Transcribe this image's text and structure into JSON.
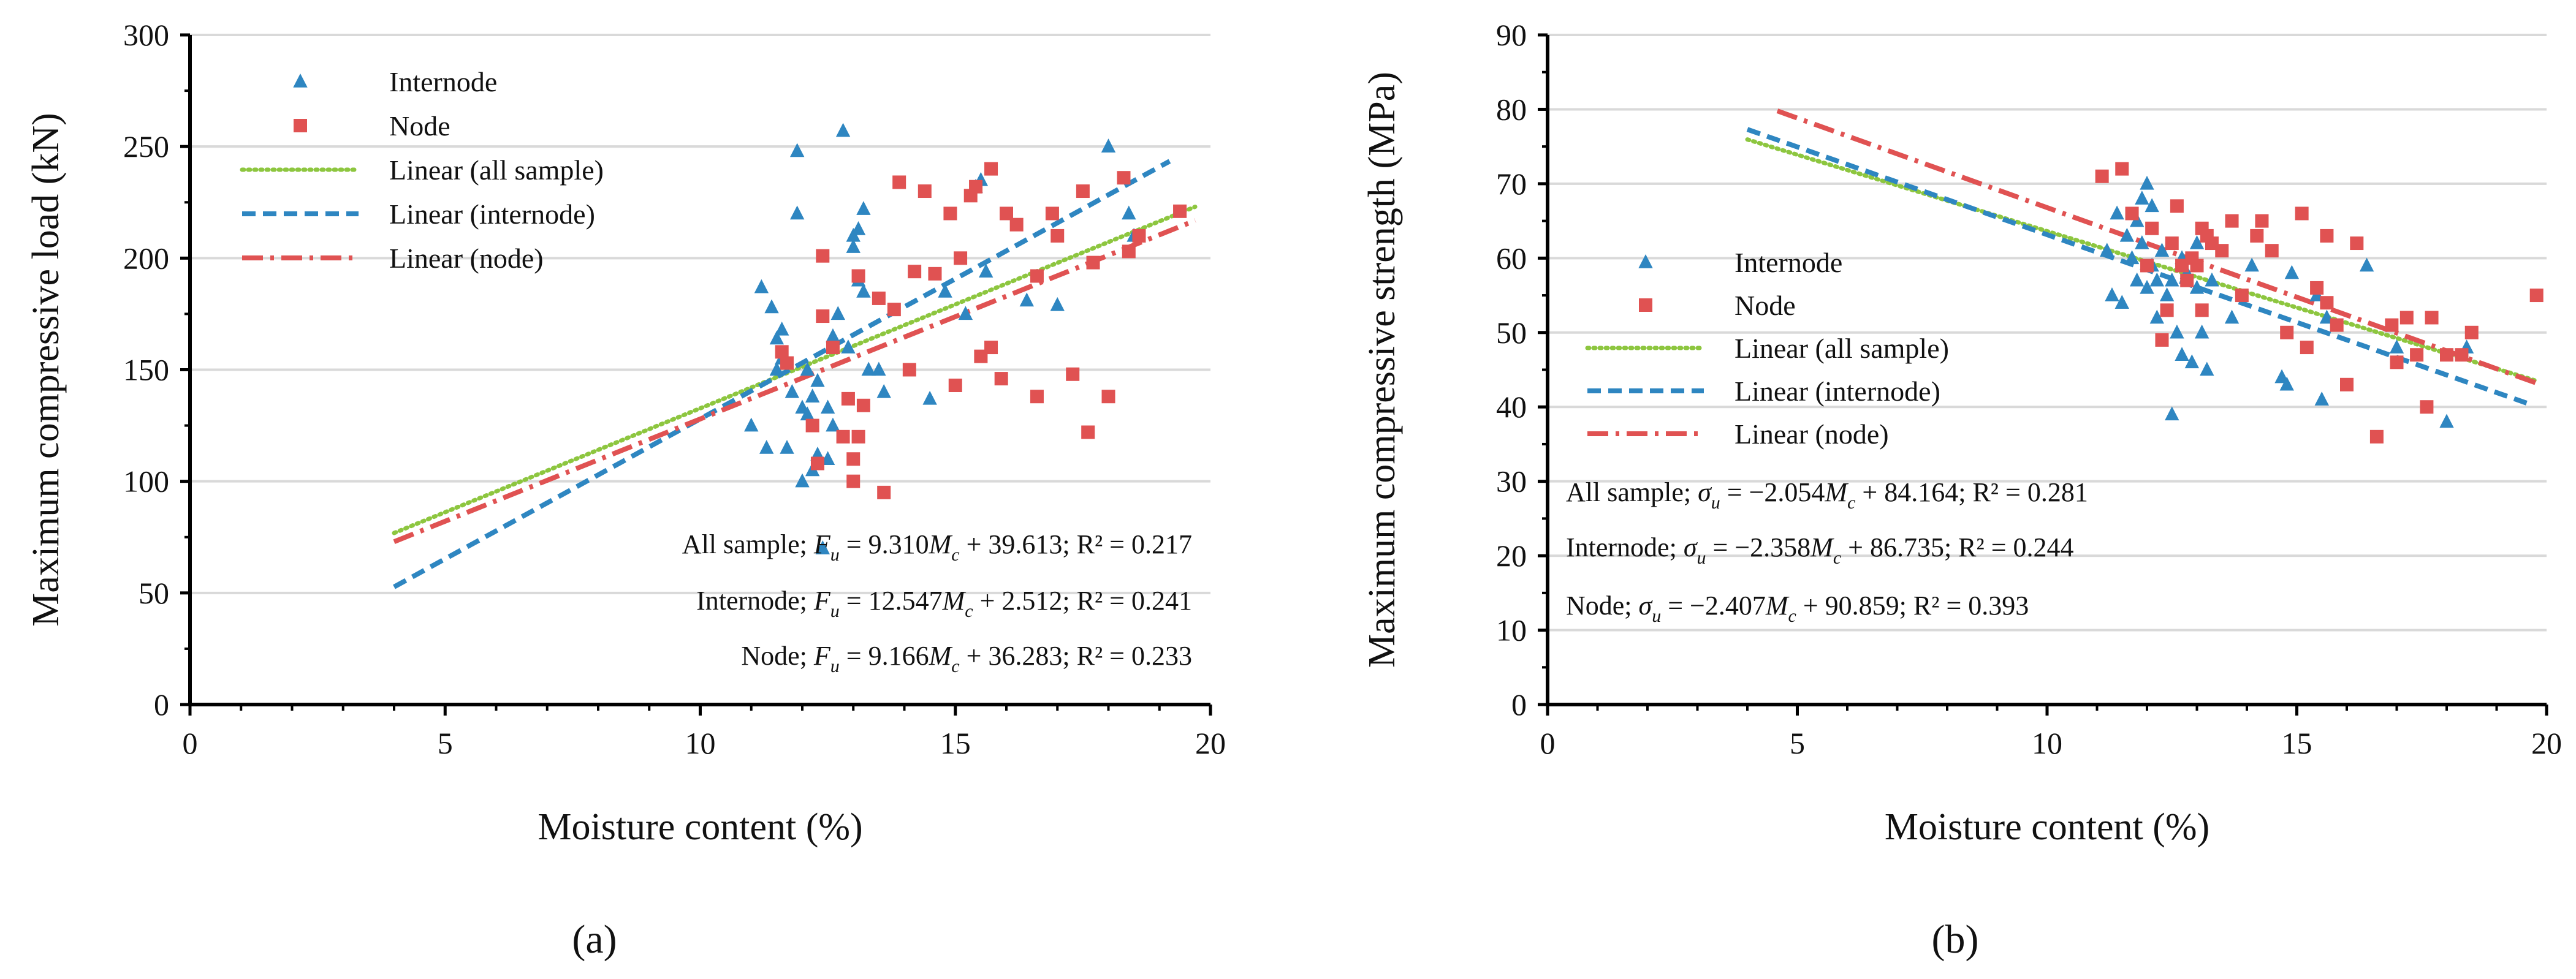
{
  "colors": {
    "internode": "#2E86C1",
    "node": "#E05252",
    "all": "#8DC63F",
    "grid": "#D9D9D9",
    "axis": "#000000"
  },
  "panels": [
    {
      "label": "(a)",
      "equations": [
        {
          "pre": "All sample; ",
          "var": "F",
          "vsub": "u",
          "mid": " = 9.310",
          "x": "M",
          "xsub": "c",
          "post": " + 39.613; R² = 0.217"
        },
        {
          "pre": "Internode; ",
          "var": "F",
          "vsub": "u",
          "mid": " = 12.547",
          "x": "M",
          "xsub": "c",
          "post": " + 2.512; R² = 0.241"
        },
        {
          "pre": "Node; ",
          "var": "F",
          "vsub": "u",
          "mid": " = 9.166",
          "x": "M",
          "xsub": "c",
          "post": " + 36.283; R² = 0.233"
        }
      ]
    },
    {
      "label": "(b)",
      "equations": [
        {
          "pre": "All sample; ",
          "var": "σ",
          "vsub": "u",
          "mid": " = −2.054",
          "x": "M",
          "xsub": "c",
          "post": " + 84.164; R² = 0.281"
        },
        {
          "pre": "Internode; ",
          "var": "σ",
          "vsub": "u",
          "mid": " = −2.358",
          "x": "M",
          "xsub": "c",
          "post": " + 86.735; R² = 0.244"
        },
        {
          "pre": "Node; ",
          "var": "σ",
          "vsub": "u",
          "mid": " = −2.407",
          "x": "M",
          "xsub": "c",
          "post": " + 90.859; R² = 0.393"
        }
      ]
    }
  ],
  "chart_data": [
    {
      "type": "scatter",
      "xlabel": "Moisture content (%)",
      "ylabel": "Maximum compressive load (kN)",
      "xlim": [
        0,
        20
      ],
      "ylim": [
        0,
        300
      ],
      "xticks": [
        0,
        5,
        10,
        15,
        20
      ],
      "yticks": [
        0,
        50,
        100,
        150,
        200,
        250,
        300
      ],
      "grid": "horizontal",
      "legend_position": "top-left",
      "legend": [
        "Internode",
        "Node",
        "Linear (all sample)",
        "Linear (internode)",
        "Linear (node)"
      ],
      "series": [
        {
          "name": "Internode",
          "marker": "triangle",
          "color": "#2E86C1",
          "points": [
            [
              11.0,
              125
            ],
            [
              11.2,
              187
            ],
            [
              11.3,
              115
            ],
            [
              11.4,
              178
            ],
            [
              11.5,
              164
            ],
            [
              11.5,
              150
            ],
            [
              11.6,
              168
            ],
            [
              11.6,
              155
            ],
            [
              11.7,
              115
            ],
            [
              11.8,
              140
            ],
            [
              11.9,
              248
            ],
            [
              11.9,
              220
            ],
            [
              12.0,
              133
            ],
            [
              12.0,
              100
            ],
            [
              12.1,
              150
            ],
            [
              12.1,
              130
            ],
            [
              12.2,
              105
            ],
            [
              12.2,
              138
            ],
            [
              12.3,
              112
            ],
            [
              12.3,
              145
            ],
            [
              12.4,
              70
            ],
            [
              12.5,
              133
            ],
            [
              12.5,
              110
            ],
            [
              12.6,
              165
            ],
            [
              12.6,
              125
            ],
            [
              12.7,
              175
            ],
            [
              12.8,
              257
            ],
            [
              12.9,
              160
            ],
            [
              13.0,
              205
            ],
            [
              13.0,
              210
            ],
            [
              13.1,
              213
            ],
            [
              13.1,
              190
            ],
            [
              13.2,
              222
            ],
            [
              13.2,
              185
            ],
            [
              13.3,
              150
            ],
            [
              13.5,
              150
            ],
            [
              13.6,
              140
            ],
            [
              14.5,
              137
            ],
            [
              14.8,
              185
            ],
            [
              15.2,
              175
            ],
            [
              15.4,
              232
            ],
            [
              15.5,
              235
            ],
            [
              15.6,
              194
            ],
            [
              16.4,
              181
            ],
            [
              17.0,
              179
            ],
            [
              18.0,
              250
            ],
            [
              18.4,
              220
            ],
            [
              18.5,
              210
            ]
          ]
        },
        {
          "name": "Node",
          "marker": "square",
          "color": "#E05252",
          "points": [
            [
              11.6,
              158
            ],
            [
              11.7,
              153
            ],
            [
              12.2,
              125
            ],
            [
              12.3,
              108
            ],
            [
              12.4,
              174
            ],
            [
              12.4,
              201
            ],
            [
              12.6,
              160
            ],
            [
              12.8,
              120
            ],
            [
              12.9,
              137
            ],
            [
              13.0,
              100
            ],
            [
              13.0,
              110
            ],
            [
              13.1,
              120
            ],
            [
              13.1,
              192
            ],
            [
              13.2,
              134
            ],
            [
              13.5,
              182
            ],
            [
              13.6,
              95
            ],
            [
              13.8,
              177
            ],
            [
              13.9,
              234
            ],
            [
              14.1,
              150
            ],
            [
              14.2,
              194
            ],
            [
              14.4,
              230
            ],
            [
              14.6,
              193
            ],
            [
              14.9,
              220
            ],
            [
              15.0,
              143
            ],
            [
              15.1,
              200
            ],
            [
              15.3,
              228
            ],
            [
              15.4,
              232
            ],
            [
              15.5,
              156
            ],
            [
              15.7,
              240
            ],
            [
              15.7,
              160
            ],
            [
              15.9,
              146
            ],
            [
              16.0,
              220
            ],
            [
              16.2,
              215
            ],
            [
              16.6,
              192
            ],
            [
              16.6,
              138
            ],
            [
              16.9,
              220
            ],
            [
              17.0,
              210
            ],
            [
              17.3,
              148
            ],
            [
              17.5,
              230
            ],
            [
              17.6,
              122
            ],
            [
              17.7,
              198
            ],
            [
              18.0,
              138
            ],
            [
              18.3,
              236
            ],
            [
              18.4,
              203
            ],
            [
              18.6,
              210
            ],
            [
              19.4,
              221
            ]
          ]
        }
      ],
      "trendlines": [
        {
          "name": "Linear (all sample)",
          "style": "dotted",
          "color": "#8DC63F",
          "slope": 9.31,
          "intercept": 39.613,
          "x_range": [
            4,
            19.7
          ]
        },
        {
          "name": "Linear (internode)",
          "style": "dashed",
          "color": "#2E86C1",
          "slope": 12.547,
          "intercept": 2.512,
          "x_range": [
            4,
            19.2
          ]
        },
        {
          "name": "Linear (node)",
          "style": "dash-dot",
          "color": "#E05252",
          "slope": 9.166,
          "intercept": 36.283,
          "x_range": [
            4,
            19.7
          ]
        }
      ]
    },
    {
      "type": "scatter",
      "xlabel": "Moisture content (%)",
      "ylabel": "Maximum compressive strength (MPa)",
      "xlim": [
        0,
        20
      ],
      "ylim": [
        0,
        90
      ],
      "xticks": [
        0,
        5,
        10,
        15,
        20
      ],
      "yticks": [
        0,
        10,
        20,
        30,
        40,
        50,
        60,
        70,
        80,
        90
      ],
      "grid": "horizontal",
      "legend_position": "center-left",
      "legend": [
        "Internode",
        "Node",
        "Linear (all sample)",
        "Linear (internode)",
        "Linear (node)"
      ],
      "series": [
        {
          "name": "Internode",
          "marker": "triangle",
          "color": "#2E86C1",
          "points": [
            [
              11.2,
              61
            ],
            [
              11.3,
              55
            ],
            [
              11.4,
              66
            ],
            [
              11.5,
              54
            ],
            [
              11.6,
              63
            ],
            [
              11.7,
              60
            ],
            [
              11.8,
              57
            ],
            [
              11.8,
              65
            ],
            [
              11.9,
              68
            ],
            [
              11.9,
              62
            ],
            [
              12.0,
              70
            ],
            [
              12.0,
              56
            ],
            [
              12.1,
              67
            ],
            [
              12.1,
              59
            ],
            [
              12.2,
              52
            ],
            [
              12.2,
              57
            ],
            [
              12.3,
              61
            ],
            [
              12.4,
              55
            ],
            [
              12.5,
              39
            ],
            [
              12.5,
              57
            ],
            [
              12.6,
              50
            ],
            [
              12.7,
              60
            ],
            [
              12.7,
              47
            ],
            [
              12.8,
              58
            ],
            [
              12.9,
              46
            ],
            [
              13.0,
              62
            ],
            [
              13.0,
              56
            ],
            [
              13.1,
              50
            ],
            [
              13.2,
              45
            ],
            [
              13.3,
              57
            ],
            [
              13.7,
              52
            ],
            [
              14.1,
              59
            ],
            [
              14.7,
              44
            ],
            [
              14.8,
              43
            ],
            [
              14.9,
              58
            ],
            [
              15.4,
              55
            ],
            [
              15.5,
              41
            ],
            [
              15.6,
              52
            ],
            [
              16.4,
              59
            ],
            [
              17.0,
              48
            ],
            [
              18.0,
              38
            ],
            [
              18.4,
              48
            ]
          ]
        },
        {
          "name": "Node",
          "marker": "square",
          "color": "#E05252",
          "points": [
            [
              11.1,
              71
            ],
            [
              11.5,
              72
            ],
            [
              11.7,
              66
            ],
            [
              12.0,
              59
            ],
            [
              12.1,
              64
            ],
            [
              12.3,
              49
            ],
            [
              12.4,
              53
            ],
            [
              12.5,
              62
            ],
            [
              12.6,
              67
            ],
            [
              12.7,
              59
            ],
            [
              12.8,
              57
            ],
            [
              12.9,
              60
            ],
            [
              13.0,
              59
            ],
            [
              13.1,
              53
            ],
            [
              13.1,
              64
            ],
            [
              13.2,
              63
            ],
            [
              13.3,
              62
            ],
            [
              13.5,
              61
            ],
            [
              13.7,
              65
            ],
            [
              13.9,
              55
            ],
            [
              14.2,
              63
            ],
            [
              14.3,
              65
            ],
            [
              14.5,
              61
            ],
            [
              14.8,
              50
            ],
            [
              15.1,
              66
            ],
            [
              15.2,
              48
            ],
            [
              15.4,
              56
            ],
            [
              15.6,
              63
            ],
            [
              15.6,
              54
            ],
            [
              15.8,
              51
            ],
            [
              16.0,
              43
            ],
            [
              16.2,
              62
            ],
            [
              16.6,
              36
            ],
            [
              16.9,
              51
            ],
            [
              17.0,
              46
            ],
            [
              17.2,
              52
            ],
            [
              17.4,
              47
            ],
            [
              17.6,
              40
            ],
            [
              17.7,
              52
            ],
            [
              18.0,
              47
            ],
            [
              18.3,
              47
            ],
            [
              18.5,
              50
            ],
            [
              19.8,
              55
            ]
          ]
        }
      ],
      "trendlines": [
        {
          "name": "Linear (all sample)",
          "style": "dotted",
          "color": "#8DC63F",
          "slope": -2.054,
          "intercept": 84.164,
          "x_range": [
            4,
            19.8
          ]
        },
        {
          "name": "Linear (internode)",
          "style": "dashed",
          "color": "#2E86C1",
          "slope": -2.358,
          "intercept": 86.735,
          "x_range": [
            4,
            19.6
          ]
        },
        {
          "name": "Linear (node)",
          "style": "dash-dot",
          "color": "#E05252",
          "slope": -2.407,
          "intercept": 90.859,
          "x_range": [
            4.6,
            19.8
          ]
        }
      ]
    }
  ]
}
